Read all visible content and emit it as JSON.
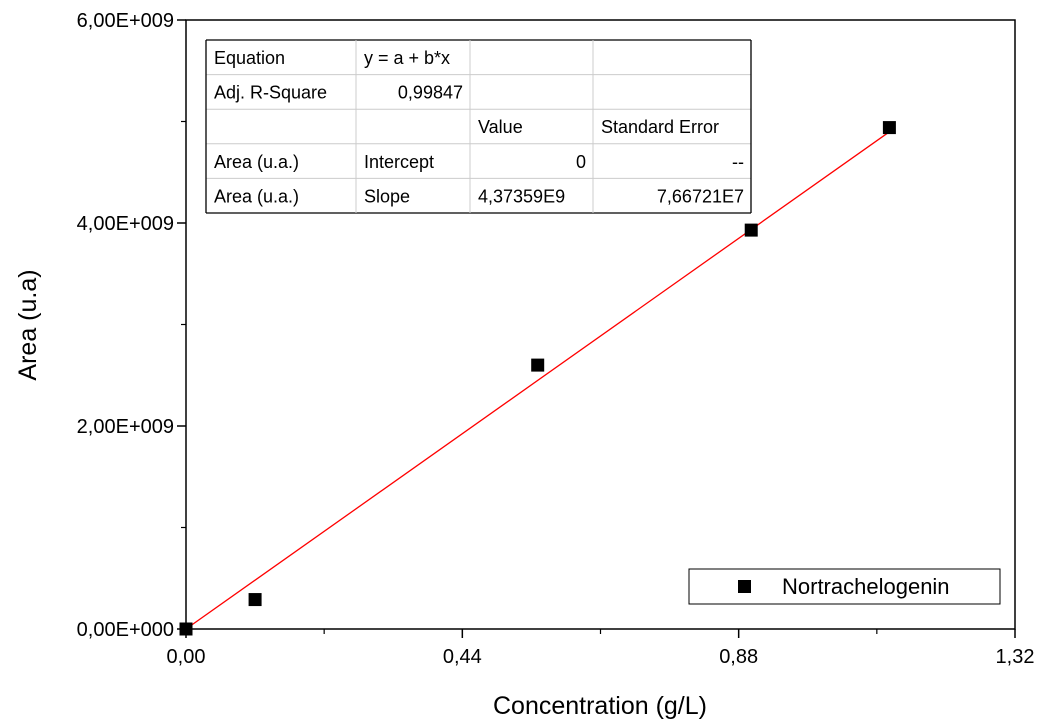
{
  "chart_data": {
    "type": "scatter",
    "xlabel": "Concentration (g/L)",
    "ylabel": "Area (u.a)",
    "xlim": [
      0,
      1.32
    ],
    "ylim": [
      0,
      6000000000
    ],
    "x_ticks": [
      0,
      0.44,
      0.88,
      1.32
    ],
    "x_tick_labels": [
      "0,00",
      "0,44",
      "0,88",
      "1,32"
    ],
    "y_ticks": [
      0,
      2000000000,
      4000000000,
      6000000000
    ],
    "y_tick_labels": [
      "0,00E+000",
      "2,00E+009",
      "4,00E+009",
      "6,00E+009"
    ],
    "grid": false,
    "legend_position": "bottom-right",
    "series": [
      {
        "name": "Nortrachelogenin",
        "marker": "square",
        "color": "#000000",
        "x": [
          0,
          0.11,
          0.56,
          0.9,
          1.12
        ],
        "y": [
          0,
          290000000,
          2600000000,
          3930000000,
          4940000000
        ]
      }
    ],
    "fit": {
      "color": "#ff0000",
      "intercept": 0,
      "slope": 4373590000,
      "x_range": [
        0,
        1.12
      ]
    },
    "fit_table": {
      "rows": [
        [
          "Equation",
          "y = a + b*x",
          "",
          ""
        ],
        [
          "Adj. R-Square",
          "0,99847",
          "",
          ""
        ],
        [
          "",
          "",
          "Value",
          "Standard Error"
        ],
        [
          "Area (u.a.)",
          "Intercept",
          "0",
          "--"
        ],
        [
          "Area (u.a.)",
          "Slope",
          "4,37359E9",
          "7,66721E7"
        ]
      ]
    }
  }
}
